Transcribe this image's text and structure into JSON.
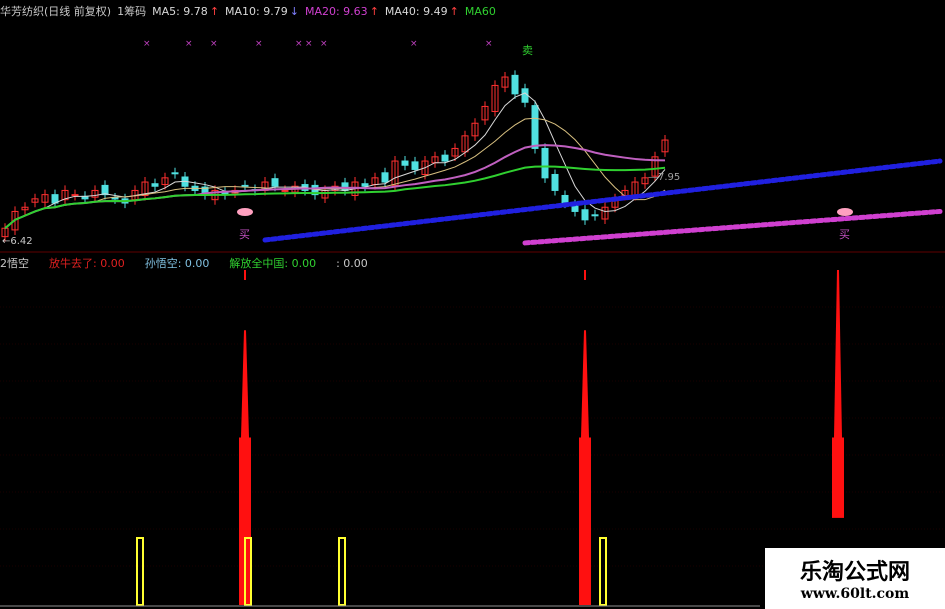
{
  "header": {
    "title": "华芳纺织(日线 前复权)",
    "chip": "1筹码",
    "ma": [
      {
        "label": "MA5: 9.78",
        "arrow": "↑",
        "color": "#d8d8d8"
      },
      {
        "label": "MA10: 9.79",
        "arrow": "↓",
        "color": "#d8d8d8"
      },
      {
        "label": "MA20: 9.63",
        "arrow": "↑",
        "color": "#d040d0"
      },
      {
        "label": "MA40: 9.49",
        "arrow": "↑",
        "color": "#d8d8d8"
      },
      {
        "label": "MA60",
        "arrow": "",
        "color": "#30d030"
      }
    ]
  },
  "indicator_header": {
    "name": "2悟空",
    "items": [
      {
        "label": "放牛去了: 0.00",
        "color": "#e02020"
      },
      {
        "label": "孙悟空: 0.00",
        "color": "#80c0e0"
      },
      {
        "label": "解放全中国: 0.00",
        "color": "#30d030"
      },
      {
        "label": ": 0.00",
        "color": "#c8c8c8"
      }
    ]
  },
  "markers": {
    "buy": "买",
    "sell": "卖",
    "low_price": "6.42",
    "mid_price": "7.95"
  },
  "watermark": {
    "title": "乐淘公式网",
    "url": "www.60lt.com"
  },
  "chart_data": [
    {
      "type": "candlestick",
      "ylim": [
        6.0,
        11.8
      ],
      "closes": [
        6.7,
        7.1,
        7.2,
        7.4,
        7.5,
        7.3,
        7.6,
        7.5,
        7.4,
        7.6,
        7.5,
        7.4,
        7.3,
        7.6,
        7.8,
        7.7,
        7.9,
        8.0,
        7.7,
        7.6,
        7.5,
        7.6,
        7.5,
        7.6,
        7.7,
        7.6,
        7.8,
        7.7,
        7.6,
        7.7,
        7.6,
        7.5,
        7.6,
        7.7,
        7.6,
        7.8,
        7.7,
        7.9,
        7.8,
        8.3,
        8.2,
        8.1,
        8.3,
        8.4,
        8.3,
        8.6,
        8.9,
        9.2,
        9.6,
        10.1,
        10.3,
        9.9,
        9.7,
        8.6,
        7.9,
        7.6,
        7.3,
        7.1,
        6.9,
        7.0,
        7.2,
        7.4,
        7.6,
        7.8,
        7.9,
        8.4,
        8.8
      ],
      "dotted_lines": [
        {
          "color": "#2020e0",
          "from": [
            26,
            6.42
          ],
          "to": [
            94,
            8.3
          ]
        },
        {
          "color": "#d040d0",
          "from": [
            52,
            6.35
          ],
          "to": [
            94,
            7.1
          ]
        }
      ],
      "buy_signals": [
        24,
        84
      ],
      "sell_signals": [
        51
      ]
    },
    {
      "type": "bar",
      "ylim": [
        0,
        100
      ],
      "red_spikes": [
        {
          "bar": 24,
          "body": 50,
          "peak": 82
        },
        {
          "bar": 58,
          "body": 50,
          "peak": 82
        },
        {
          "bar": 83.3,
          "base": 26,
          "body": 50,
          "peak": 100
        }
      ],
      "yellow_bars": [
        {
          "bar": 13.5,
          "value": 20
        },
        {
          "bar": 24.3,
          "value": 20
        },
        {
          "bar": 33.7,
          "value": 20
        },
        {
          "bar": 59.8,
          "value": 20
        },
        {
          "bar": 84.7,
          "value": 5
        }
      ]
    }
  ]
}
